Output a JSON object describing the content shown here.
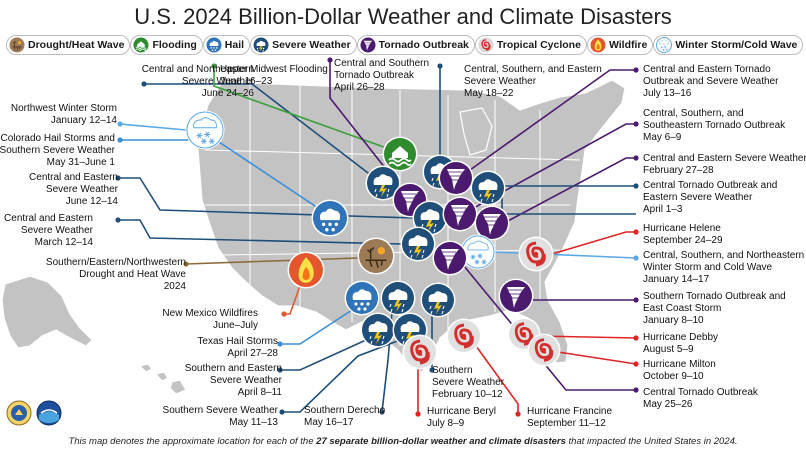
{
  "title": "U.S. 2024 Billion-Dollar Weather and Climate Disasters",
  "legend": [
    {
      "label": "Drought/Heat Wave",
      "color": "#9b7a55",
      "icon": "drought-icon"
    },
    {
      "label": "Flooding",
      "color": "#2e8b2e",
      "icon": "flooding-icon"
    },
    {
      "label": "Hail",
      "color": "#2f74b8",
      "icon": "hail-icon"
    },
    {
      "label": "Severe Weather",
      "color": "#1f4e79",
      "icon": "severe-weather-icon"
    },
    {
      "label": "Tornado Outbreak",
      "color": "#4b1a6e",
      "icon": "tornado-icon"
    },
    {
      "label": "Tropical Cyclone",
      "color": "#d9d9d9",
      "icon": "hurricane-icon"
    },
    {
      "label": "Wildfire",
      "color": "#e4572e",
      "icon": "wildfire-icon"
    },
    {
      "label": "Winter Storm/Cold Wave",
      "color": "#5aa9e6",
      "icon": "snowflake-icon"
    }
  ],
  "events": [
    {
      "name": "Central and Northeastern\nSevere Weather",
      "date": "June 24–26"
    },
    {
      "name": "Upper Midwest Flooding",
      "date": "June 16–23"
    },
    {
      "name": "Central and Southern\nTornado Outbreak",
      "date": "April 26–28"
    },
    {
      "name": "Central, Southern, and Eastern\nSevere Weather",
      "date": "May 18–22"
    },
    {
      "name": "Central and Eastern Tornado\nOutbreak and Severe Weather",
      "date": "July 13–16"
    },
    {
      "name": "Northwest Winter Storm",
      "date": "January 12–14"
    },
    {
      "name": "Colorado Hail Storms and\nSouthern Severe Weather",
      "date": "May 31–June 1"
    },
    {
      "name": "Central and Eastern\nSevere Weather",
      "date": "June 12–14"
    },
    {
      "name": "Central and Eastern\nSevere Weather",
      "date": "March 12–14"
    },
    {
      "name": "Southern/Eastern/Northwestern\nDrought and Heat Wave",
      "date": "2024"
    },
    {
      "name": "New Mexico Wildfires",
      "date": "June–July"
    },
    {
      "name": "Texas Hail Storms",
      "date": "April 27–28"
    },
    {
      "name": "Southern and Eastern\nSevere Weather",
      "date": "April 8–11"
    },
    {
      "name": "Southern Severe Weather",
      "date": "May 11–13"
    },
    {
      "name": "Southern Derecho",
      "date": "May 16–17"
    },
    {
      "name": "Hurricane Beryl",
      "date": "July 8–9"
    },
    {
      "name": "Southern\nSevere Weather",
      "date": "February 10–12"
    },
    {
      "name": "Hurricane Francine",
      "date": "September 11–12"
    },
    {
      "name": "Central, Southern, and\nSoutheastern Tornado Outbreak",
      "date": "May 6–9"
    },
    {
      "name": "Central and Eastern Severe Weather",
      "date": "February 27–28"
    },
    {
      "name": "Central Tornado Outbreak and\nEastern Severe Weather",
      "date": "April 1–3"
    },
    {
      "name": "Hurricane Helene",
      "date": "September 24–29"
    },
    {
      "name": "Central, Southern, and Northeastern\nWinter Storm and Cold Wave",
      "date": "January 14–17"
    },
    {
      "name": "Southern Tornado Outbreak and\nEast Coast Storm",
      "date": "January 8–10"
    },
    {
      "name": "Hurricane Debby",
      "date": "August 5–9"
    },
    {
      "name": "Hurricane Milton",
      "date": "October 9–10"
    },
    {
      "name": "Central Tornado Outbreak",
      "date": "May 25–26"
    }
  ],
  "footer": {
    "before": "This map denotes the approximate location for each of the ",
    "bold": "27 separate billion-dollar weather and climate disasters",
    "after": " that impacted the United States in 2024."
  },
  "logos": [
    "Department of Commerce seal",
    "NOAA logo"
  ]
}
